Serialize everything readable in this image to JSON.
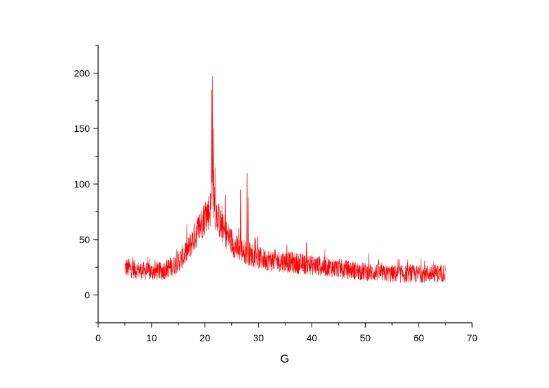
{
  "chart_data": {
    "type": "line",
    "title": "",
    "xlabel": "G",
    "ylabel": "",
    "xlim": [
      0,
      70
    ],
    "ylim": [
      -25,
      225
    ],
    "x_ticks": [
      0,
      10,
      20,
      30,
      40,
      50,
      60,
      70
    ],
    "y_ticks": [
      0,
      50,
      100,
      150,
      200
    ],
    "grid": false,
    "legend": "none",
    "series": [
      {
        "color": "#ff0000",
        "x_range": [
          5,
          65
        ],
        "envelope": [
          {
            "x": 5,
            "y": 25
          },
          {
            "x": 6,
            "y": 24
          },
          {
            "x": 8,
            "y": 22
          },
          {
            "x": 10,
            "y": 21
          },
          {
            "x": 12,
            "y": 22
          },
          {
            "x": 14,
            "y": 26
          },
          {
            "x": 16,
            "y": 35
          },
          {
            "x": 17,
            "y": 42
          },
          {
            "x": 18,
            "y": 52
          },
          {
            "x": 19,
            "y": 62
          },
          {
            "x": 20,
            "y": 70
          },
          {
            "x": 21,
            "y": 78
          },
          {
            "x": 21.5,
            "y": 95
          },
          {
            "x": 22,
            "y": 75
          },
          {
            "x": 23,
            "y": 62
          },
          {
            "x": 24,
            "y": 55
          },
          {
            "x": 25,
            "y": 48
          },
          {
            "x": 26,
            "y": 42
          },
          {
            "x": 27,
            "y": 40
          },
          {
            "x": 28,
            "y": 38
          },
          {
            "x": 30,
            "y": 33
          },
          {
            "x": 35,
            "y": 30
          },
          {
            "x": 40,
            "y": 27
          },
          {
            "x": 45,
            "y": 24
          },
          {
            "x": 50,
            "y": 21
          },
          {
            "x": 55,
            "y": 19
          },
          {
            "x": 60,
            "y": 19
          },
          {
            "x": 65,
            "y": 20
          }
        ],
        "peaks": [
          {
            "x": 21.3,
            "y": 185
          },
          {
            "x": 21.4,
            "y": 197
          },
          {
            "x": 21.6,
            "y": 150
          },
          {
            "x": 21.9,
            "y": 115
          },
          {
            "x": 23.8,
            "y": 90
          },
          {
            "x": 26.7,
            "y": 95
          },
          {
            "x": 27.9,
            "y": 110
          },
          {
            "x": 28.1,
            "y": 88
          }
        ]
      }
    ]
  }
}
